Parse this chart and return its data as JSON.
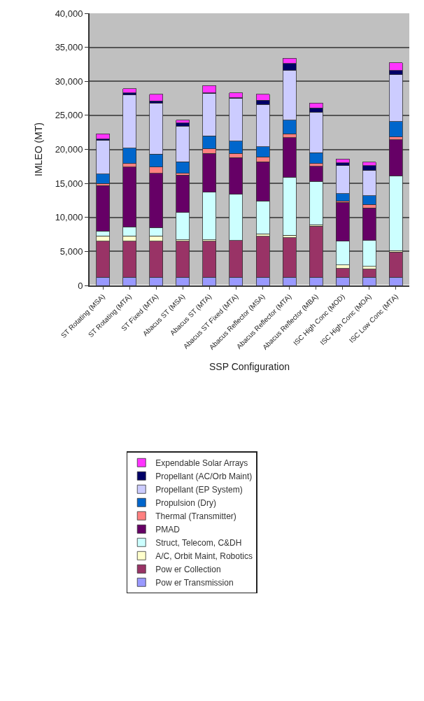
{
  "chart_data": {
    "type": "bar",
    "stacked": true,
    "xlabel": "SSP Configuration",
    "ylabel": "IMLEO (MT)",
    "categories": [
      "ST Rotating (MSA)",
      "ST Rotating (MTA)",
      "ST Fixed (MTA)",
      "Abacus ST (MSA)",
      "Abacus ST (MTA)",
      "Abacus ST Fixed (MTA)",
      "Abacus Reflector (MSA)",
      "Abacus Reflector (MTA)",
      "Abacus Reflector (MBA)",
      "ISC High Conc (MOD)",
      "ISC High Conc (MOA)",
      "ISC Low Conc (MTA)"
    ],
    "series": [
      {
        "name": "Pow er Transmission",
        "color": "#9999ff",
        "values": [
          1200,
          1200,
          1200,
          1200,
          1200,
          1200,
          1200,
          1200,
          1200,
          1200,
          1200,
          1200
        ]
      },
      {
        "name": "Pow er Collection",
        "color": "#993366",
        "values": [
          5300,
          5300,
          5300,
          5300,
          5300,
          5400,
          6000,
          5800,
          7500,
          1300,
          1200,
          3700
        ]
      },
      {
        "name": "A/C, Orbit Maint, Robotics",
        "color": "#ffffcc",
        "values": [
          800,
          800,
          800,
          200,
          200,
          null,
          400,
          400,
          200,
          500,
          400,
          200
        ]
      },
      {
        "name": "Struct, Telecom, C&DH",
        "color": "#ccffff",
        "values": [
          700,
          1300,
          1200,
          4000,
          7000,
          6800,
          4800,
          8500,
          6400,
          3500,
          3800,
          11000
        ]
      },
      {
        "name": "PMAD",
        "color": "#660066",
        "values": [
          6700,
          8800,
          8000,
          5500,
          5700,
          5400,
          5800,
          5800,
          2200,
          5700,
          4800,
          5300
        ]
      },
      {
        "name": "Thermal (Transmitter)",
        "color": "#ff8080",
        "values": [
          300,
          500,
          900,
          300,
          700,
          600,
          700,
          600,
          400,
          200,
          500,
          400
        ]
      },
      {
        "name": "Propulsion (Dry)",
        "color": "#0066cc",
        "values": [
          1400,
          2300,
          1900,
          1700,
          1900,
          1800,
          1500,
          2000,
          1600,
          1100,
          1300,
          2300
        ]
      },
      {
        "name": "Propellant (EP System)",
        "color": "#ccccff",
        "values": [
          4900,
          7800,
          7500,
          5200,
          6200,
          6300,
          6200,
          7300,
          6000,
          4100,
          3700,
          6900
        ]
      },
      {
        "name": "Propellant (AC/Orb Maint)",
        "color": "#000066",
        "values": [
          200,
          300,
          300,
          500,
          100,
          100,
          600,
          1000,
          600,
          400,
          700,
          600
        ]
      },
      {
        "name": "Expendable Solar Arrays",
        "color": "#ff33ff",
        "values": [
          800,
          600,
          1000,
          400,
          1100,
          700,
          900,
          800,
          700,
          600,
          500,
          1100
        ]
      }
    ],
    "ylim": [
      0,
      40000
    ],
    "yticks": [
      {
        "value": 0,
        "label": "0"
      },
      {
        "value": 5000,
        "label": "5,000"
      },
      {
        "value": 10000,
        "label": "10,000"
      },
      {
        "value": 15000,
        "label": "15,000"
      },
      {
        "value": 20000,
        "label": "20,000"
      },
      {
        "value": 25000,
        "label": "25,000"
      },
      {
        "value": 30000,
        "label": "30,000"
      },
      {
        "value": 35000,
        "label": "35,000"
      },
      {
        "value": 40000,
        "label": "40,000"
      }
    ],
    "grid": "y",
    "legend": "bottom"
  }
}
